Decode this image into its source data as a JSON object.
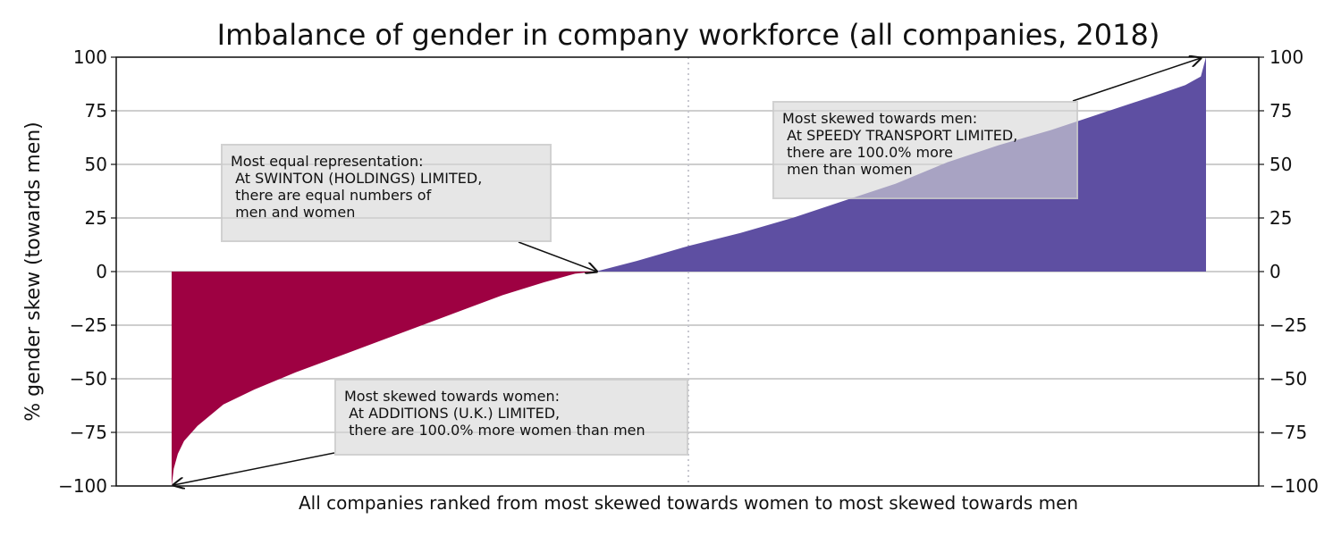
{
  "chart_data": {
    "type": "area",
    "title": "Imbalance of gender in company workforce (all companies, 2018)",
    "xlabel": "All companies ranked from most skewed towards women to most skewed towards men",
    "ylabel": "% gender skew (towards men)",
    "ylim": [
      -100,
      100
    ],
    "yticks": [
      "100",
      "75",
      "50",
      "25",
      "0",
      "−25",
      "−50",
      "−75",
      "−100"
    ],
    "ytick_values": [
      100,
      75,
      50,
      25,
      0,
      -25,
      -50,
      -75,
      -100
    ],
    "grid": "horizontal",
    "median_line": "dotted vertical at middle company",
    "colors": {
      "women": "#9e0142",
      "men": "#5e4fa2",
      "grid": "#b0b0b0",
      "median": "#c8c8d0"
    },
    "x_rank_fraction": [
      0,
      0.002,
      0.006,
      0.012,
      0.025,
      0.05,
      0.08,
      0.12,
      0.17,
      0.22,
      0.27,
      0.32,
      0.36,
      0.39,
      0.41,
      0.45,
      0.5,
      0.55,
      0.6,
      0.65,
      0.7,
      0.75,
      0.8,
      0.85,
      0.9,
      0.95,
      0.98,
      0.995,
      1.0
    ],
    "y_values": [
      -100,
      -92,
      -85,
      -79,
      -72,
      -62,
      -55,
      -47,
      -38,
      -29,
      -20,
      -11,
      -5,
      -1,
      0,
      5,
      12,
      18,
      25,
      33,
      41,
      51,
      59,
      66,
      74,
      82,
      87,
      91,
      100
    ]
  },
  "annotations": {
    "equal": {
      "lines": [
        "Most equal representation:",
        " At SWINTON (HOLDINGS) LIMITED,",
        " there are equal numbers of",
        " men and women"
      ],
      "target": {
        "rank_fraction": 0.411,
        "value": 0
      }
    },
    "men": {
      "lines": [
        "Most skewed towards men:",
        " At SPEEDY TRANSPORT LIMITED,",
        " there are 100.0% more",
        " men than women"
      ],
      "target": {
        "rank_fraction": 1.0,
        "value": 100
      }
    },
    "women": {
      "lines": [
        "Most skewed towards women:",
        " At ADDITIONS (U.K.) LIMITED,",
        " there are 100.0% more women than men"
      ],
      "target": {
        "rank_fraction": 0.0,
        "value": -100
      }
    }
  }
}
